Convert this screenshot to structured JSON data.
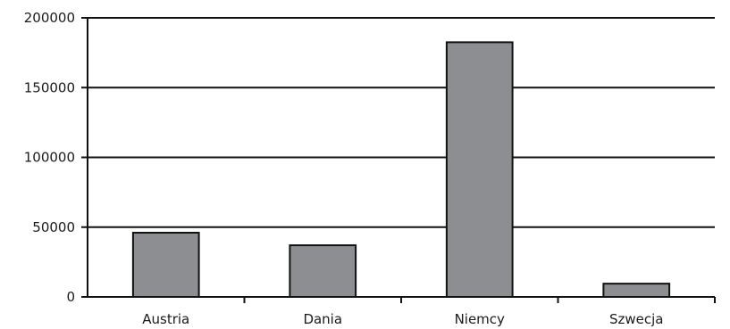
{
  "colors": {
    "bar_fill": "#8c8e92",
    "bar_stroke": "#111111",
    "gridline": "#111111",
    "axis": "#111111"
  },
  "chart_data": {
    "type": "bar",
    "categories": [
      "Austria",
      "Dania",
      "Niemcy",
      "Szwecja"
    ],
    "values": [
      46000,
      37000,
      182500,
      9500
    ],
    "title": "",
    "xlabel": "",
    "ylabel": "",
    "ylim": [
      0,
      200000
    ],
    "yticks": [
      0,
      50000,
      100000,
      150000,
      200000
    ],
    "ytick_labels": [
      "0",
      "50000",
      "100000",
      "150000",
      "200000"
    ],
    "grid": true,
    "legend": "none"
  }
}
